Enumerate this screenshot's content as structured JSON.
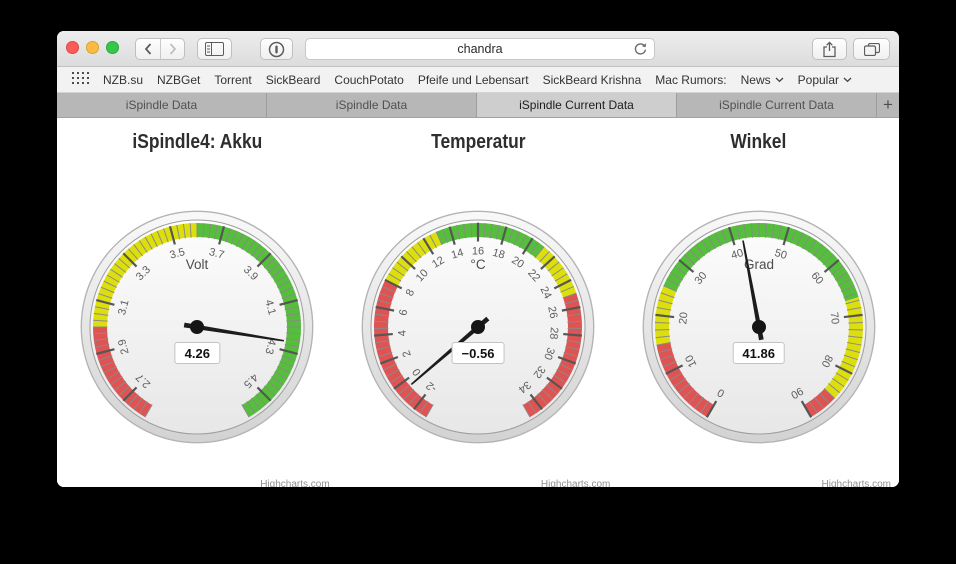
{
  "browser": {
    "traffic_lights": {
      "close": "#fc5b57",
      "minimize": "#fdbc40",
      "zoom": "#34c749"
    },
    "url_value": "chandra",
    "toolbar_icons": [
      "back",
      "forward",
      "sidebar",
      "onepassword",
      "reload",
      "share",
      "tab-overview"
    ]
  },
  "bookmarks": {
    "items": [
      "NZB.su",
      "NZBGet",
      "Torrent",
      "SickBeard",
      "CouchPotato",
      "Pfeife und Lebensart",
      "SickBeard Krishna",
      "Mac Rumors:"
    ],
    "dropdowns": [
      {
        "label": "News"
      },
      {
        "label": "Popular"
      }
    ]
  },
  "tabs": {
    "items": [
      {
        "label": "iSpindle Data",
        "active": false
      },
      {
        "label": "iSpindle Data",
        "active": false
      },
      {
        "label": "iSpindle Current Data",
        "active": true
      },
      {
        "label": "iSpindle Current Data",
        "active": false
      }
    ],
    "new_tab_label": "+"
  },
  "colors": {
    "band_red": "#DF5353",
    "band_yellow": "#DDDF0D",
    "band_green": "#55BF3B",
    "needle": "#1c1c1c"
  },
  "chart_data": [
    {
      "type": "gauge",
      "title": "iSpindle4: Akku",
      "unit": "Volt",
      "value": 4.26,
      "value_display": "4.26",
      "min": 2.6,
      "max": 4.6,
      "start_angle": -150,
      "end_angle": 150,
      "tick_interval": 0.2,
      "minor_tick_interval": 0.025,
      "label_values": [
        2.7,
        2.9,
        3.1,
        3.3,
        3.5,
        3.7,
        3.9,
        4.1,
        4.3,
        4.5
      ],
      "tick_labels": [
        "2.7",
        "2.9",
        "3.1",
        "3.3",
        "3.5",
        "3.7",
        "3.9",
        "4.1",
        "4.3",
        "4.5"
      ],
      "bands": [
        {
          "from": 2.6,
          "to": 3.0,
          "color": "#DF5353"
        },
        {
          "from": 3.0,
          "to": 3.6,
          "color": "#DDDF0D"
        },
        {
          "from": 3.6,
          "to": 4.6,
          "color": "#55BF3B"
        }
      ],
      "credit": "Highcharts.com"
    },
    {
      "type": "gauge",
      "title": "Temperatur",
      "unit": "°C",
      "value": -0.56,
      "value_display": "−0.56",
      "min": -3,
      "max": 35,
      "start_angle": -150,
      "end_angle": 150,
      "tick_interval": 2,
      "minor_tick_interval": 0.5,
      "label_values": [
        -2,
        0,
        2,
        4,
        6,
        8,
        10,
        12,
        14,
        16,
        18,
        20,
        22,
        24,
        26,
        28,
        30,
        32,
        34
      ],
      "tick_labels": [
        "-2",
        "0",
        "2",
        "4",
        "6",
        "8",
        "10",
        "12",
        "14",
        "16",
        "18",
        "20",
        "22",
        "24",
        "26",
        "28",
        "30",
        "32",
        "34"
      ],
      "bands": [
        {
          "from": -3,
          "to": 8,
          "color": "#DF5353"
        },
        {
          "from": 8,
          "to": 13,
          "color": "#DDDF0D"
        },
        {
          "from": 13,
          "to": 21,
          "color": "#55BF3B"
        },
        {
          "from": 21,
          "to": 25,
          "color": "#DDDF0D"
        },
        {
          "from": 25,
          "to": 35,
          "color": "#DF5353"
        }
      ],
      "credit": "Highcharts.com"
    },
    {
      "type": "gauge",
      "title": "Winkel",
      "unit": "Grad",
      "value": 41.86,
      "value_display": "41.86",
      "min": 0,
      "max": 90,
      "start_angle": -150,
      "end_angle": 150,
      "tick_interval": 10,
      "minor_tick_interval": 1.25,
      "label_values": [
        0,
        10,
        20,
        30,
        40,
        50,
        60,
        70,
        80,
        90
      ],
      "tick_labels": [
        "0",
        "10",
        "20",
        "30",
        "40",
        "50",
        "60",
        "70",
        "80",
        "90"
      ],
      "bands": [
        {
          "from": 0,
          "to": 15,
          "color": "#DF5353"
        },
        {
          "from": 15,
          "to": 25,
          "color": "#DDDF0D"
        },
        {
          "from": 25,
          "to": 67,
          "color": "#55BF3B"
        },
        {
          "from": 67,
          "to": 85,
          "color": "#DDDF0D"
        },
        {
          "from": 85,
          "to": 90,
          "color": "#DF5353"
        }
      ],
      "credit": "Highcharts.com"
    }
  ]
}
